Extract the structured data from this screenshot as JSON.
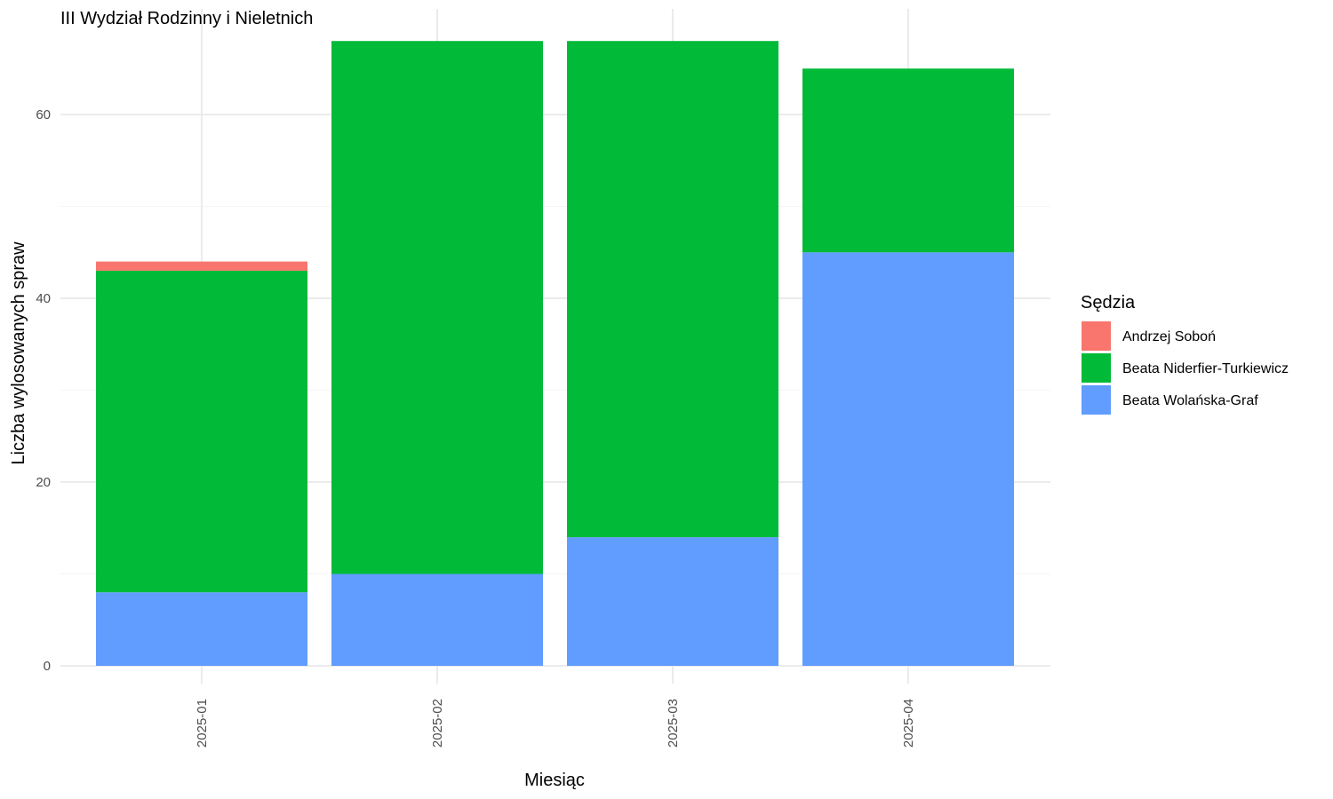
{
  "chart_data": {
    "type": "bar",
    "stacked": true,
    "title": "III Wydział Rodzinny i Nieletnich",
    "xlabel": "Miesiąc",
    "ylabel": "Liczba wylosowanych spraw",
    "categories": [
      "2025-01",
      "2025-02",
      "2025-03",
      "2025-04"
    ],
    "ylim": [
      0,
      70
    ],
    "yticks": [
      0,
      20,
      40,
      60
    ],
    "grid": true,
    "legend": {
      "title": "Sędzia",
      "position": "right"
    },
    "series": [
      {
        "name": "Beata Wolańska-Graf",
        "color": "#619CFF",
        "values": [
          8,
          10,
          14,
          45
        ]
      },
      {
        "name": "Beata Niderfier-Turkiewicz",
        "color": "#00BA38",
        "values": [
          35,
          58,
          54,
          20
        ]
      },
      {
        "name": "Andrzej Soboń",
        "color": "#F8766D",
        "values": [
          1,
          0,
          0,
          0
        ]
      }
    ],
    "legend_order": [
      "Andrzej Soboń",
      "Beata Niderfier-Turkiewicz",
      "Beata Wolańska-Graf"
    ]
  }
}
